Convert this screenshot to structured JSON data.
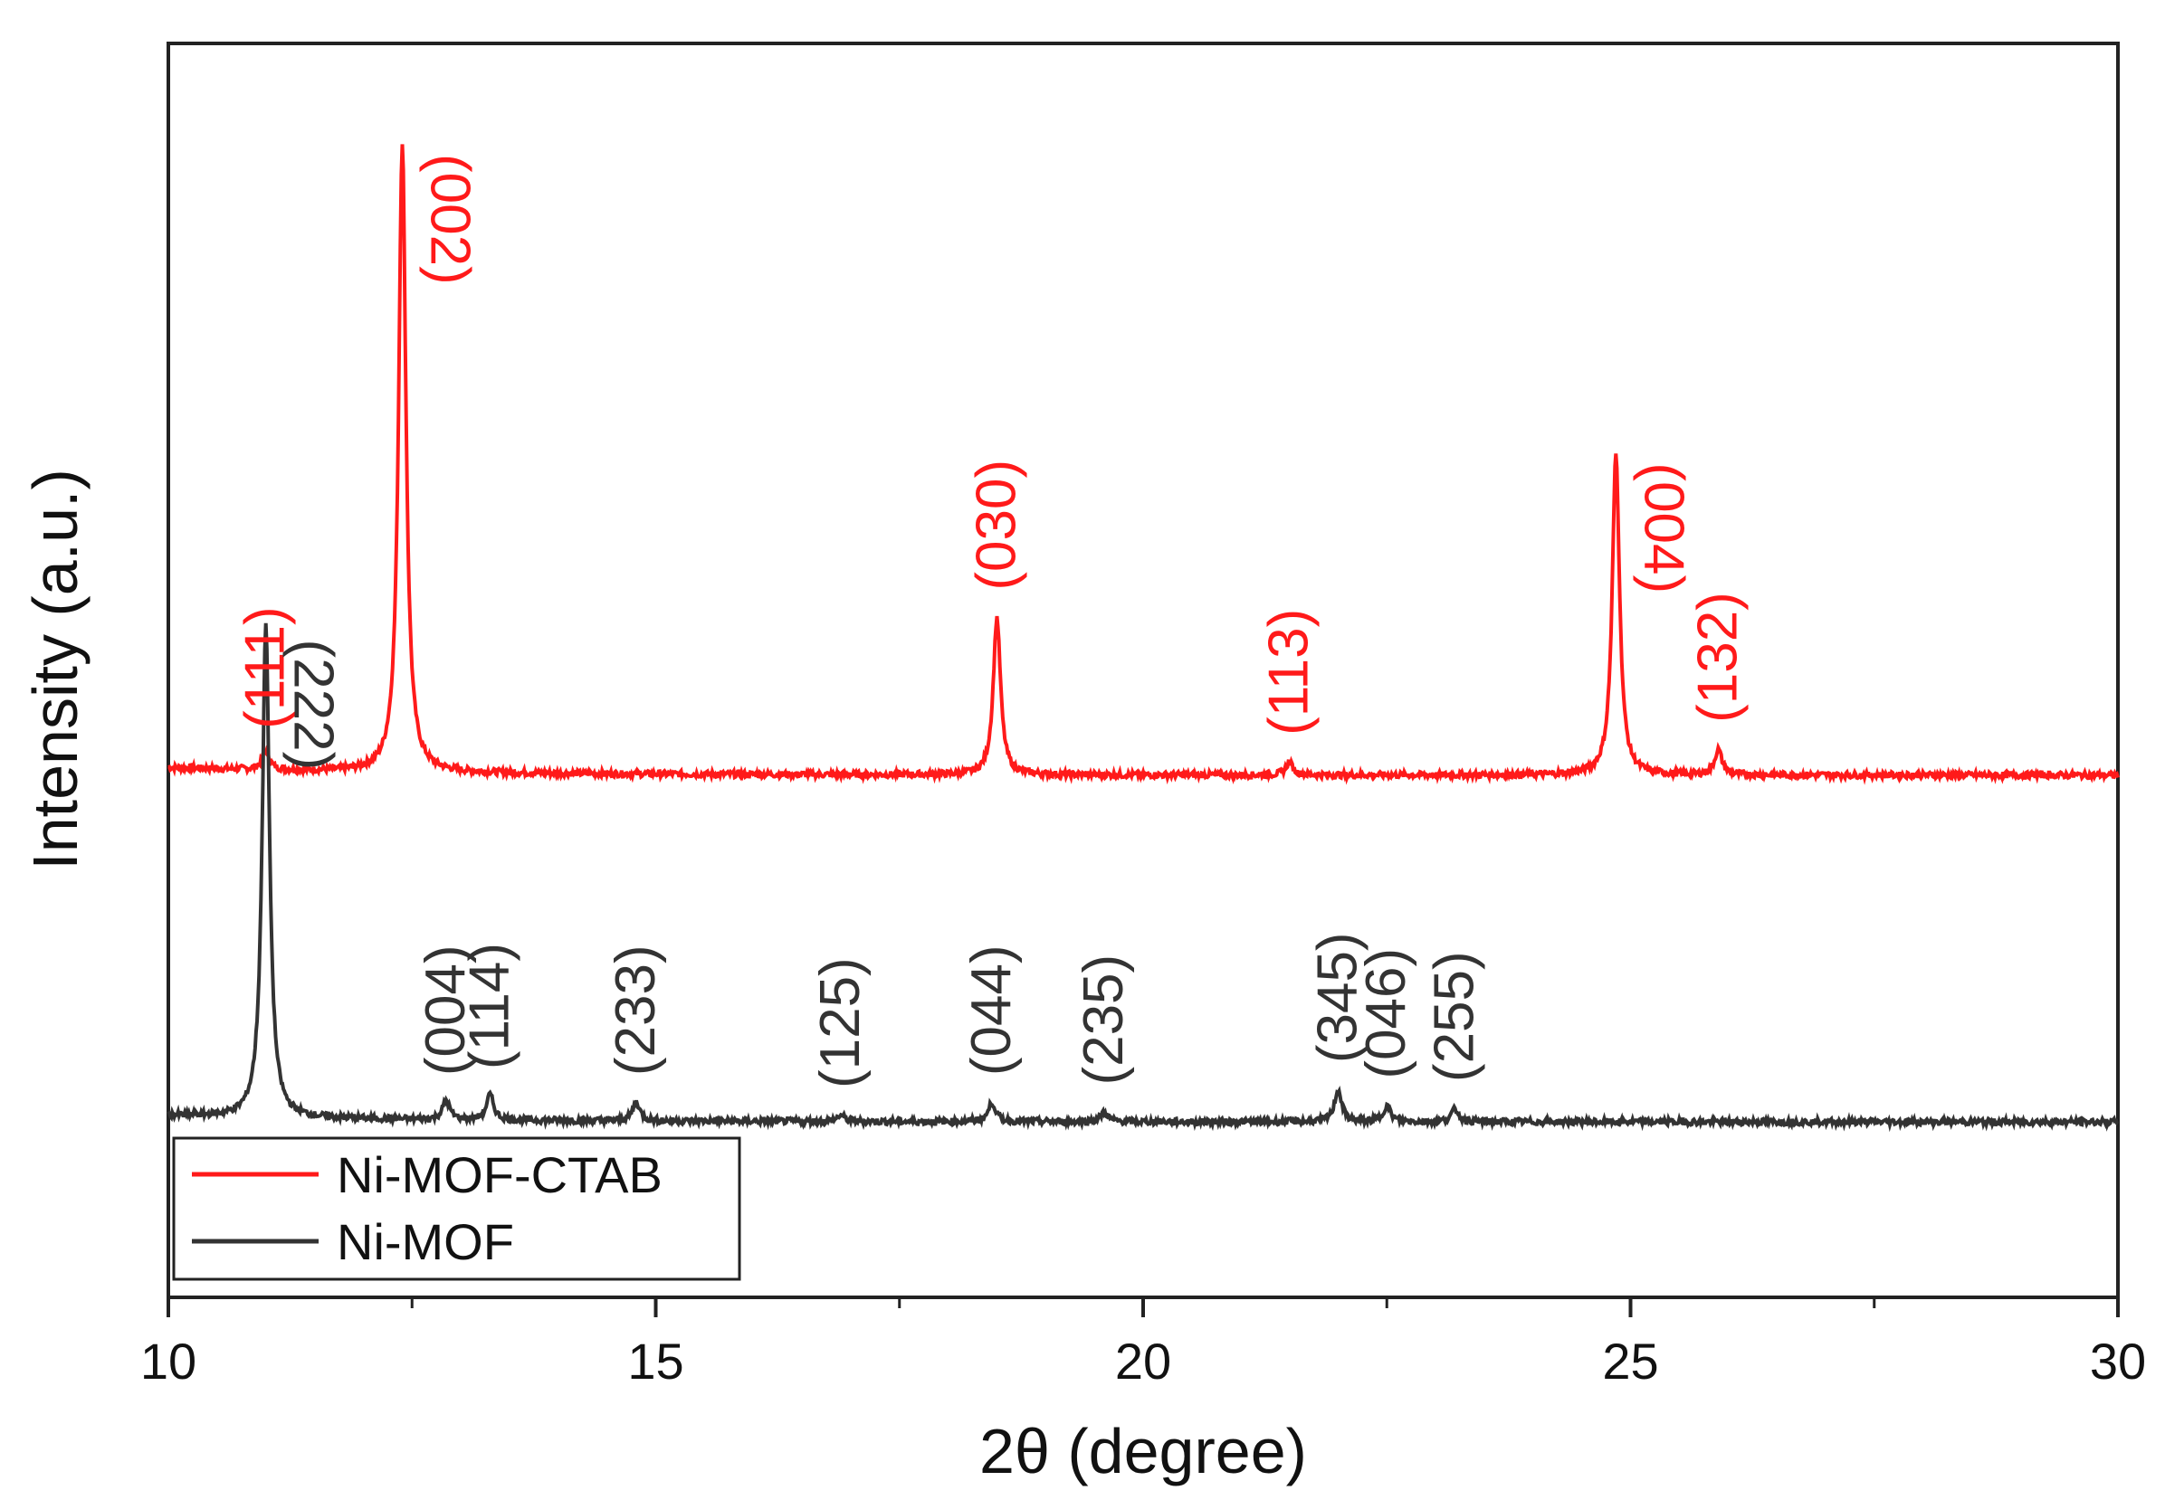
{
  "chart_data": {
    "type": "line",
    "xlabel": "2θ (degree)",
    "ylabel": "Intensity (a.u.)",
    "xlim": [
      10,
      30
    ],
    "xticks": [
      "10",
      "15",
      "20",
      "25",
      "30"
    ],
    "minor_ticks": true,
    "grid": false,
    "legend_position": "bottom-left",
    "y_ticks_shown": false,
    "series": [
      {
        "name": "Ni-MOF-CTAB",
        "color": "#ff1a1a",
        "baseline": 0.55,
        "peaks": [
          {
            "x": 11.0,
            "height": 0.03,
            "label": "(111)"
          },
          {
            "x": 12.4,
            "height": 1.0,
            "label": "(002)"
          },
          {
            "x": 18.5,
            "height": 0.25,
            "label": "(030)"
          },
          {
            "x": 21.5,
            "height": 0.02,
            "label": "(113)"
          },
          {
            "x": 24.85,
            "height": 0.51,
            "label": "(004)"
          },
          {
            "x": 25.9,
            "height": 0.04,
            "label": "(132)"
          }
        ]
      },
      {
        "name": "Ni-MOF",
        "color": "#333333",
        "baseline": 0.0,
        "peaks": [
          {
            "x": 11.0,
            "height": 0.78,
            "label": "(222)"
          },
          {
            "x": 12.85,
            "height": 0.03,
            "label": "(004)"
          },
          {
            "x": 13.3,
            "height": 0.04,
            "label": "(114)"
          },
          {
            "x": 14.8,
            "height": 0.03,
            "label": "(233)"
          },
          {
            "x": 16.9,
            "height": 0.01,
            "label": "(125)"
          },
          {
            "x": 18.45,
            "height": 0.03,
            "label": "(044)"
          },
          {
            "x": 19.6,
            "height": 0.015,
            "label": "(235)"
          },
          {
            "x": 22.0,
            "height": 0.05,
            "label": "(345)"
          },
          {
            "x": 22.5,
            "height": 0.025,
            "label": "(046)"
          },
          {
            "x": 23.2,
            "height": 0.02,
            "label": "(255)"
          }
        ]
      }
    ]
  },
  "legend": {
    "items": [
      {
        "label": "Ni-MOF-CTAB",
        "color": "#ff1a1a"
      },
      {
        "label": "Ni-MOF",
        "color": "#333333"
      }
    ]
  }
}
